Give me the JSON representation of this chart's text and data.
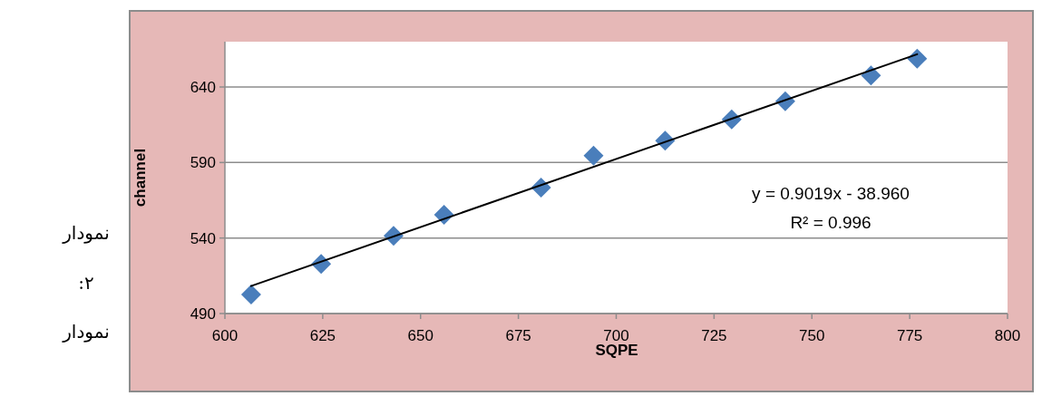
{
  "chart_data": {
    "type": "scatter",
    "xlabel": "SQPE",
    "ylabel": "channel",
    "annotations": [
      "y = 0.9019x - 38.960",
      "R² = 0.996",
      "نمودار",
      "۲:",
      "نمودار"
    ],
    "xlim": [
      600,
      800
    ],
    "ylim": [
      490,
      670
    ],
    "xticks": [
      600,
      625,
      650,
      675,
      700,
      725,
      750,
      775,
      800
    ],
    "yticks": [
      490,
      540,
      590,
      640
    ],
    "grid": "y",
    "marker": "diamond",
    "series": [
      {
        "color": "#4a7ebb",
        "x": [
          606.7,
          624.6,
          643.1,
          656.0,
          680.8,
          694.2,
          712.5,
          729.5,
          743.2,
          765.1,
          776.9
        ],
        "values": [
          502.6,
          522.9,
          541.5,
          555.4,
          573.4,
          594.6,
          604.5,
          618.5,
          630.5,
          647.6,
          658.8
        ]
      },
      {
        "type": "line",
        "color": "#000000",
        "marker": "none",
        "x": [
          606.7,
          776.9
        ],
        "values": [
          508.2,
          661.7
        ]
      }
    ]
  }
}
